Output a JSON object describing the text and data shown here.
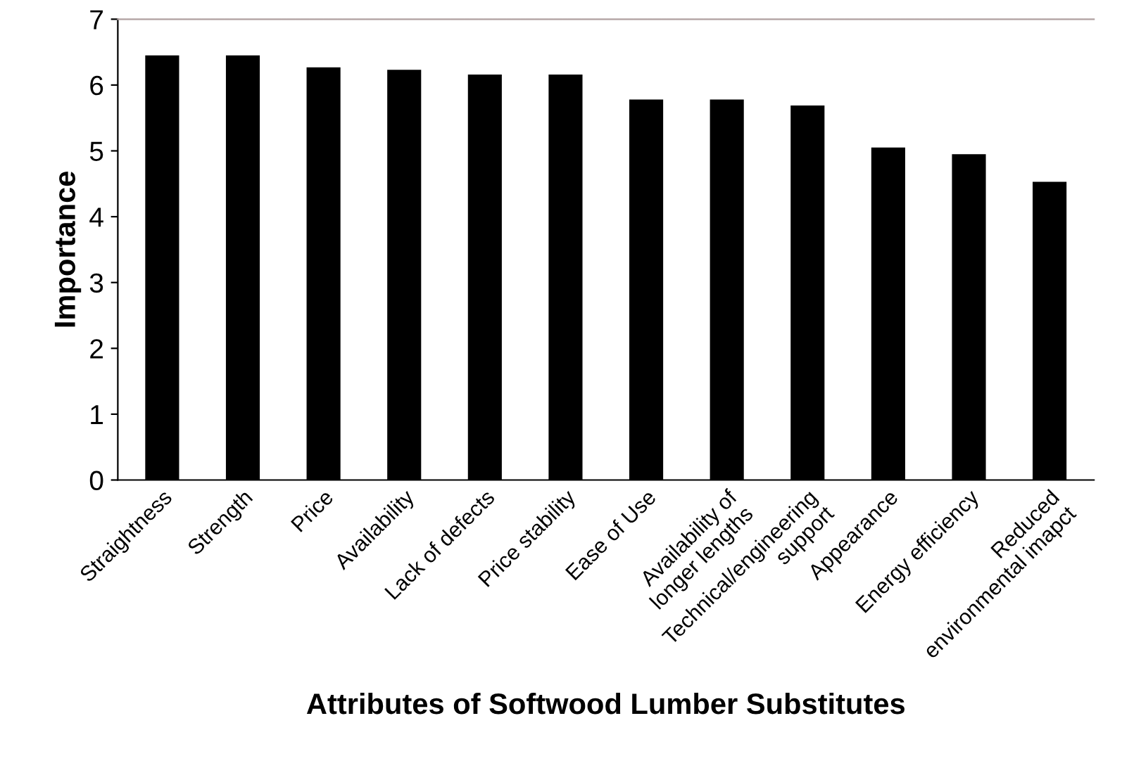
{
  "chart_data": {
    "type": "bar",
    "xlabel": "Attributes of Softwood Lumber Substitutes",
    "ylabel": "Importance",
    "categories": [
      "Straightness",
      "Strength",
      "Price",
      "Availability",
      "Lack of defects",
      "Price stability",
      "Ease of Use",
      "Availability of\nlonger lengths",
      "Technical/engineering\nsupport",
      "Appearance",
      "Energy efficiency",
      "Reduced\nenvironmental imapct"
    ],
    "values": [
      6.45,
      6.45,
      6.27,
      6.23,
      6.16,
      6.16,
      5.78,
      5.78,
      5.69,
      5.05,
      4.95,
      4.53
    ],
    "color": "#000000",
    "ylim": [
      0,
      7
    ],
    "yticks": [
      0,
      1,
      2,
      3,
      4,
      5,
      6,
      7
    ],
    "grid": false,
    "legend": false
  }
}
